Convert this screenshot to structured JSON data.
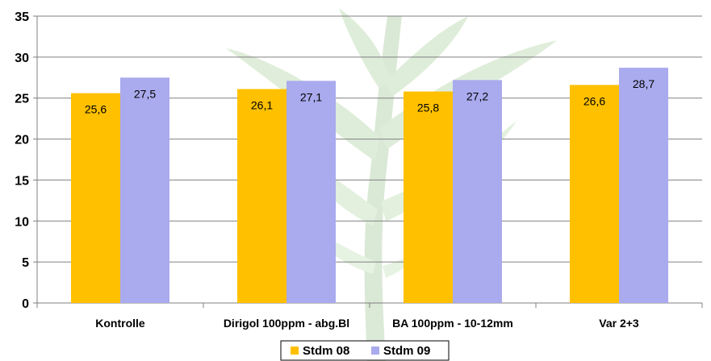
{
  "chart_data": {
    "type": "bar",
    "categories": [
      "Kontrolle",
      "Dirigol 100ppm - abg.Bl",
      "BA 100ppm - 10-12mm",
      "Var 2+3"
    ],
    "series": [
      {
        "name": "Stdm 08",
        "values": [
          25.6,
          26.1,
          25.8,
          26.6
        ],
        "labels": [
          "25,6",
          "26,1",
          "25,8",
          "26,6"
        ],
        "color": "#FFC000"
      },
      {
        "name": "Stdm 09",
        "values": [
          27.5,
          27.1,
          27.2,
          28.7
        ],
        "labels": [
          "27,5",
          "27,1",
          "27,2",
          "28,7"
        ],
        "color": "#AAAAEE"
      }
    ],
    "ylim": [
      0,
      35
    ],
    "yticks": [
      0,
      5,
      10,
      15,
      20,
      25,
      30,
      35
    ],
    "title": "",
    "xlabel": "",
    "ylabel": "",
    "grid": true,
    "legend": "bottom",
    "colors": {
      "grid": "#808080",
      "axis": "#808080",
      "watermark": "#7DB46E"
    }
  }
}
